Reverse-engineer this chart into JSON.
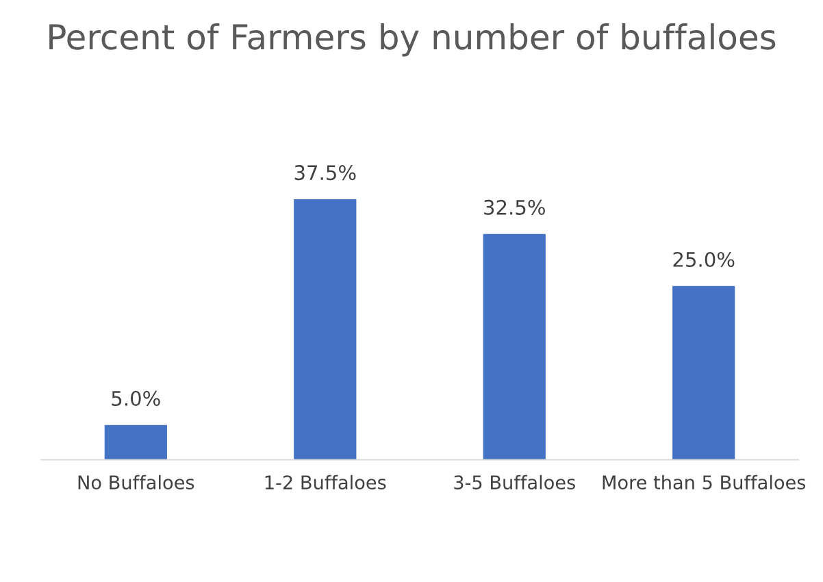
{
  "chart_data": {
    "type": "bar",
    "title": "Percent of Farmers by number of buffaloes",
    "categories": [
      "No Buffaloes",
      "1-2 Buffaloes",
      "3-5 Buffaloes",
      "More than 5 Buffaloes"
    ],
    "values": [
      5.0,
      37.5,
      32.5,
      25.0
    ],
    "value_labels": [
      "5.0%",
      "37.5%",
      "32.5%",
      "25.0%"
    ],
    "color": "#4472c4",
    "grid": false,
    "legend": false
  }
}
